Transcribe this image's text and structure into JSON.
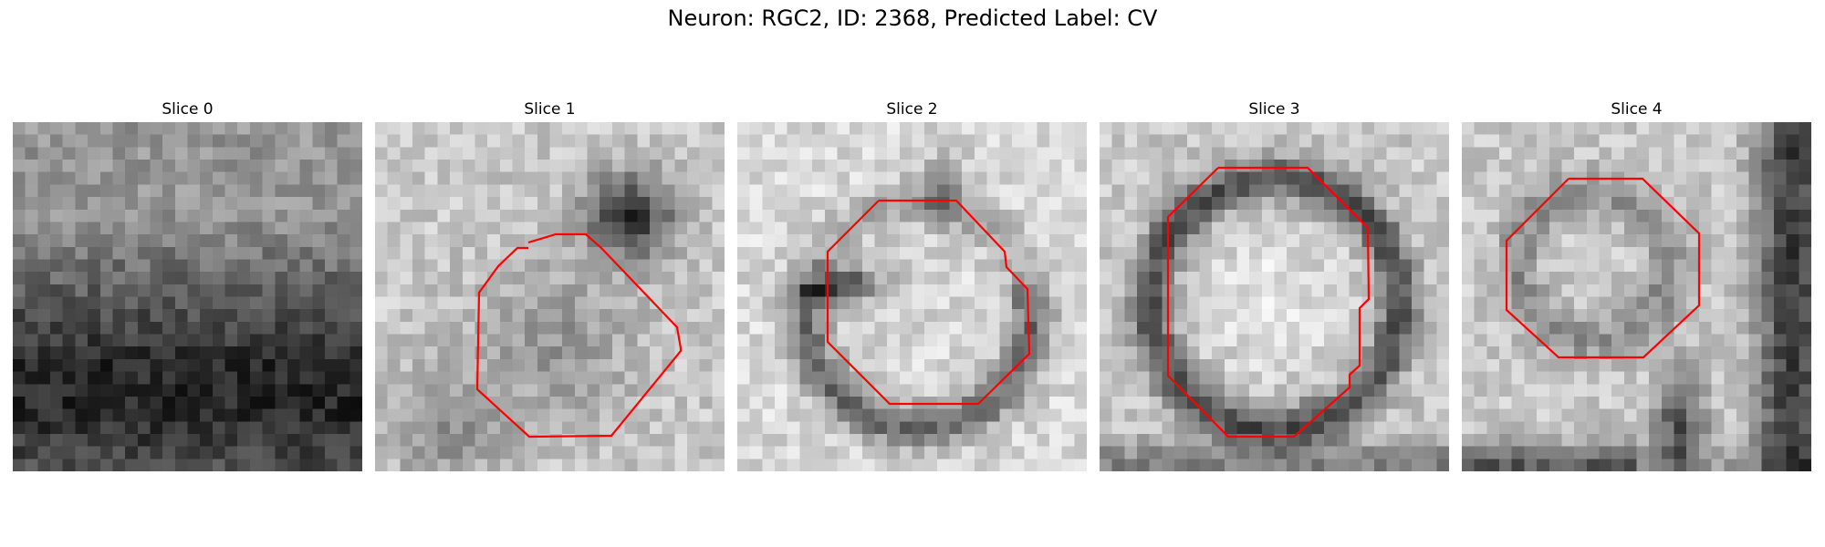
{
  "figure": {
    "title": "Neuron: RGC2, ID: 2368, Predicted Label: CV"
  },
  "slices": [
    {
      "label": "Slice 0",
      "has_contour": false
    },
    {
      "label": "Slice 1",
      "has_contour": true
    },
    {
      "label": "Slice 2",
      "has_contour": true
    },
    {
      "label": "Slice 3",
      "has_contour": true
    },
    {
      "label": "Slice 4",
      "has_contour": true
    }
  ],
  "style": {
    "contour_color": "#ff0000",
    "colormap": "grayscale"
  }
}
